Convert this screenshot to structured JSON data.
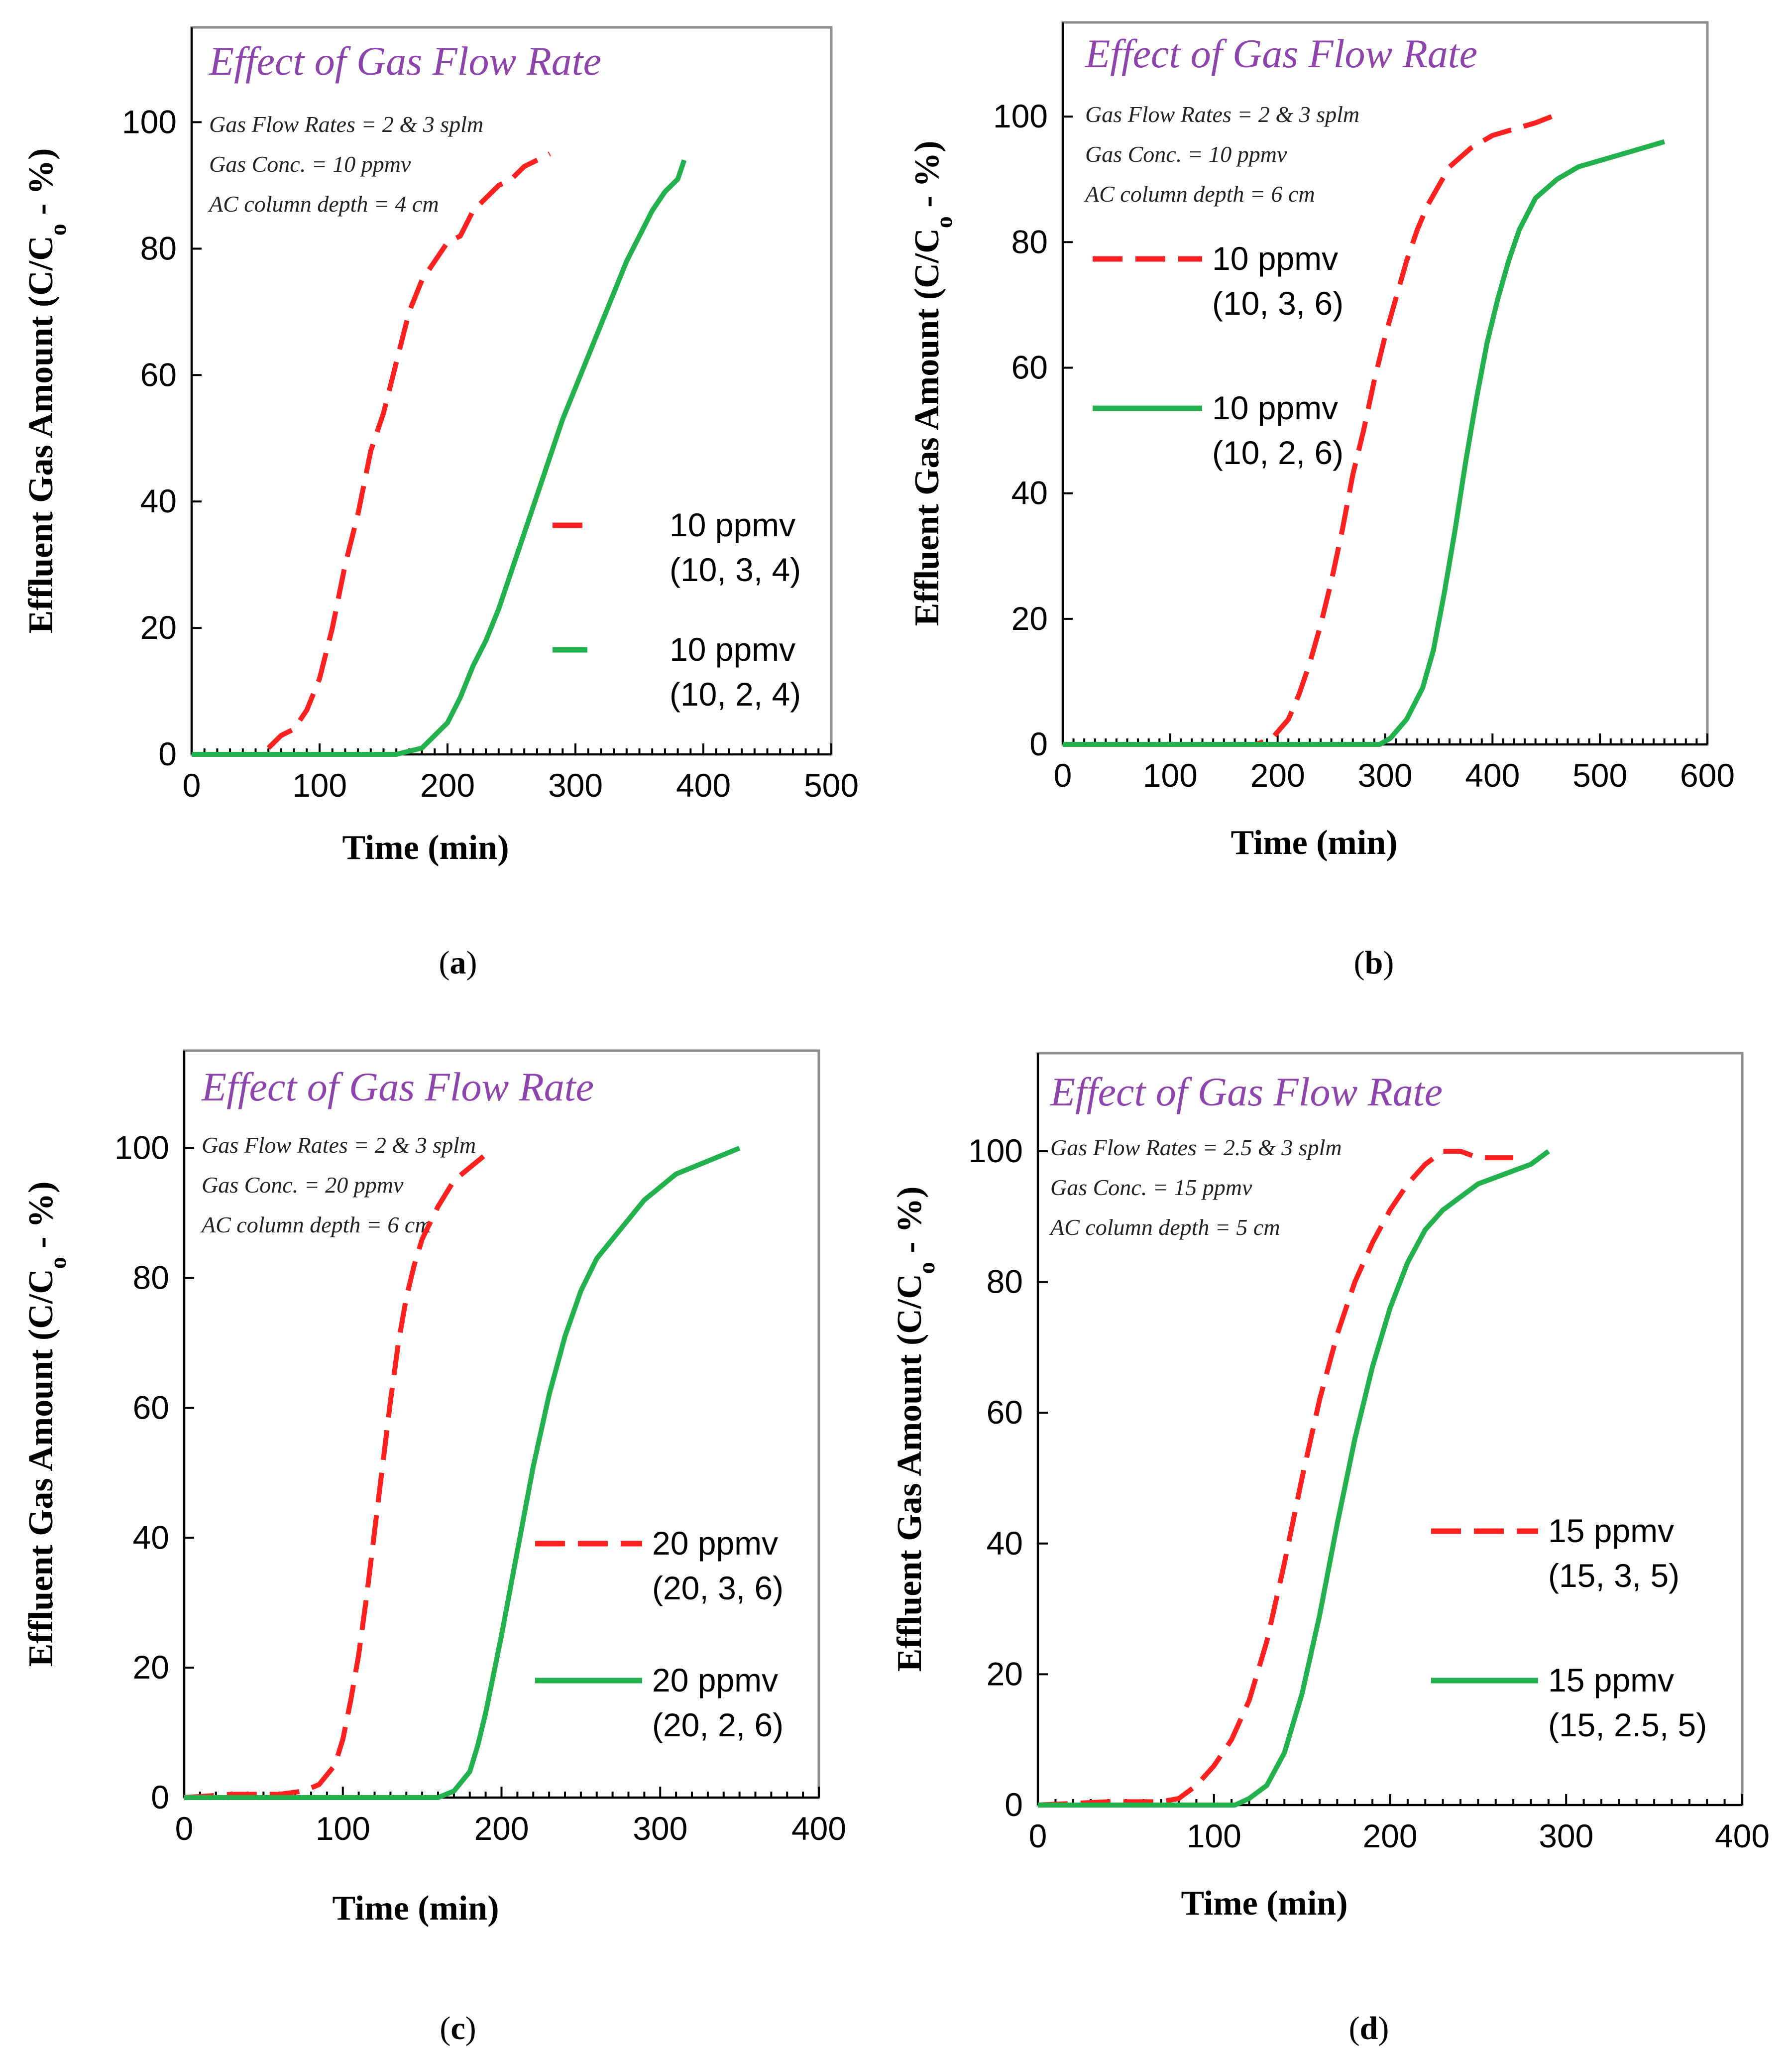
{
  "chart_data": [
    {
      "type": "line",
      "panel_label": "a",
      "title": "Effect of Gas Flow Rate",
      "annotations": [
        "Gas Flow Rates = 2 & 3 splm",
        "Gas Conc. = 10 ppmv",
        "AC column depth = 4 cm"
      ],
      "xlabel": "Time (min)",
      "ylabel": "Effluent Gas Amount (C/C",
      "ylabel_sub": "o",
      "ylabel_tail": " - %)",
      "xlim": [
        0,
        500
      ],
      "ylim": [
        0,
        115
      ],
      "xticks": [
        "0",
        "100",
        "200",
        "300",
        "400",
        "500"
      ],
      "yticks": [
        "0",
        "20",
        "40",
        "60",
        "80",
        "100"
      ],
      "series": [
        {
          "name": "10 ppmv",
          "detail": "(10, 3, 4)",
          "color": "#ff2020",
          "style": "dashed",
          "x": [
            60,
            65,
            70,
            80,
            90,
            100,
            110,
            120,
            130,
            140,
            150,
            160,
            170,
            180,
            190,
            200,
            210,
            220,
            230,
            240,
            250,
            260,
            270,
            280
          ],
          "y": [
            1,
            2,
            3,
            4,
            7,
            12,
            20,
            30,
            38,
            48,
            54,
            62,
            70,
            75,
            78,
            81,
            82,
            86,
            88,
            90,
            91,
            93,
            94,
            95
          ]
        },
        {
          "name": "10 ppmv",
          "detail": "(10, 2, 4)",
          "color": "#22b14c",
          "style": "solid",
          "x": [
            0,
            160,
            180,
            190,
            200,
            210,
            220,
            230,
            240,
            250,
            260,
            270,
            280,
            290,
            300,
            310,
            320,
            330,
            340,
            350,
            360,
            370,
            380,
            385
          ],
          "y": [
            0,
            0,
            1,
            3,
            5,
            9,
            14,
            18,
            23,
            29,
            35,
            41,
            47,
            53,
            58,
            63,
            68,
            73,
            78,
            82,
            86,
            89,
            91,
            94
          ]
        }
      ]
    },
    {
      "type": "line",
      "panel_label": "b",
      "title": "Effect of Gas Flow Rate",
      "annotations": [
        "Gas Flow Rates = 2 & 3 splm",
        "Gas Conc. = 10 ppmv",
        "AC column depth = 6 cm"
      ],
      "xlabel": "Time (min)",
      "ylabel": "Effluent Gas Amount (C/C",
      "ylabel_sub": "o",
      "ylabel_tail": " - %)",
      "xlim": [
        0,
        600
      ],
      "ylim": [
        0,
        115
      ],
      "xticks": [
        "0",
        "100",
        "200",
        "300",
        "400",
        "500",
        "600"
      ],
      "yticks": [
        "0",
        "20",
        "40",
        "60",
        "80",
        "100"
      ],
      "series": [
        {
          "name": "10 ppmv",
          "detail": "(10, 3, 6)",
          "color": "#ff2020",
          "style": "dashed",
          "x": [
            0,
            180,
            195,
            210,
            220,
            230,
            240,
            250,
            260,
            270,
            280,
            290,
            300,
            310,
            320,
            330,
            340,
            350,
            360,
            380,
            400,
            420,
            440,
            455
          ],
          "y": [
            0,
            0,
            1,
            4,
            8,
            13,
            19,
            26,
            34,
            43,
            50,
            58,
            65,
            71,
            77,
            82,
            86,
            89,
            92,
            95,
            97,
            98,
            99,
            100
          ]
        },
        {
          "name": "10 ppmv",
          "detail": "(10, 2, 6)",
          "color": "#22b14c",
          "style": "solid",
          "x": [
            0,
            295,
            305,
            320,
            335,
            345,
            355,
            365,
            375,
            385,
            395,
            405,
            415,
            425,
            440,
            460,
            480,
            500,
            520,
            540,
            560
          ],
          "y": [
            0,
            0,
            1,
            4,
            9,
            15,
            24,
            34,
            45,
            55,
            64,
            71,
            77,
            82,
            87,
            90,
            92,
            93,
            94,
            95,
            96
          ]
        }
      ]
    },
    {
      "type": "line",
      "panel_label": "c",
      "title": "Effect of Gas Flow Rate",
      "annotations": [
        "Gas Flow Rates = 2 & 3 splm",
        "Gas Conc. = 20 ppmv",
        "AC column depth = 6 cm"
      ],
      "xlabel": "Time (min)",
      "ylabel": "Effluent Gas Amount (C/C",
      "ylabel_sub": "o",
      "ylabel_tail": " - %)",
      "xlim": [
        0,
        400
      ],
      "ylim": [
        0,
        115
      ],
      "xticks": [
        "0",
        "100",
        "200",
        "300",
        "400"
      ],
      "yticks": [
        "0",
        "20",
        "40",
        "60",
        "80",
        "100"
      ],
      "series": [
        {
          "name": "20 ppmv",
          "detail": "(20, 3, 6)",
          "color": "#ff2020",
          "style": "dashed",
          "x": [
            0,
            30,
            60,
            75,
            85,
            95,
            100,
            105,
            110,
            115,
            120,
            125,
            130,
            135,
            140,
            145,
            150,
            160,
            170,
            180,
            190
          ],
          "y": [
            0,
            0.5,
            0.5,
            1,
            2,
            5,
            9,
            15,
            22,
            31,
            41,
            51,
            61,
            70,
            77,
            82,
            86,
            91,
            95,
            97,
            99
          ]
        },
        {
          "name": "20 ppmv",
          "detail": "(20, 2, 6)",
          "color": "#22b14c",
          "style": "solid",
          "x": [
            0,
            160,
            170,
            180,
            185,
            190,
            195,
            200,
            210,
            220,
            230,
            240,
            250,
            260,
            270,
            280,
            290,
            300,
            310,
            320,
            330,
            340,
            350
          ],
          "y": [
            0,
            0,
            1,
            4,
            8,
            13,
            19,
            25,
            38,
            51,
            62,
            71,
            78,
            83,
            86,
            89,
            92,
            94,
            96,
            97,
            98,
            99,
            100
          ]
        }
      ]
    },
    {
      "type": "line",
      "panel_label": "d",
      "title": "Effect of Gas Flow Rate",
      "annotations": [
        "Gas Flow Rates = 2.5 & 3 splm",
        "Gas Conc. = 15 ppmv",
        "AC column depth = 5 cm"
      ],
      "xlabel": "Time (min)",
      "ylabel": "Effluent Gas Amount (C/C",
      "ylabel_sub": "o",
      "ylabel_tail": " - %)",
      "xlim": [
        0,
        400
      ],
      "ylim": [
        0,
        115
      ],
      "xticks": [
        "0",
        "100",
        "200",
        "300",
        "400"
      ],
      "yticks": [
        "0",
        "20",
        "40",
        "60",
        "80",
        "100"
      ],
      "series": [
        {
          "name": "15 ppmv",
          "detail": "(15, 3, 5)",
          "color": "#ff2020",
          "style": "dashed",
          "x": [
            0,
            40,
            70,
            80,
            90,
            100,
            110,
            120,
            130,
            140,
            150,
            160,
            170,
            180,
            190,
            200,
            210,
            220,
            230,
            240,
            250,
            260,
            270
          ],
          "y": [
            0,
            0.5,
            0.5,
            1,
            3,
            6,
            10,
            16,
            25,
            37,
            50,
            62,
            72,
            80,
            86,
            91,
            95,
            98,
            100,
            100,
            99,
            99,
            99
          ]
        },
        {
          "name": "15 ppmv",
          "detail": "(15, 2.5, 5)",
          "color": "#22b14c",
          "style": "solid",
          "x": [
            0,
            112,
            120,
            130,
            140,
            150,
            160,
            170,
            180,
            190,
            200,
            210,
            220,
            230,
            240,
            250,
            260,
            270,
            280,
            290
          ],
          "y": [
            0,
            0,
            1,
            3,
            8,
            17,
            29,
            43,
            56,
            67,
            76,
            83,
            88,
            91,
            93,
            95,
            96,
            97,
            98,
            100
          ]
        }
      ]
    }
  ]
}
